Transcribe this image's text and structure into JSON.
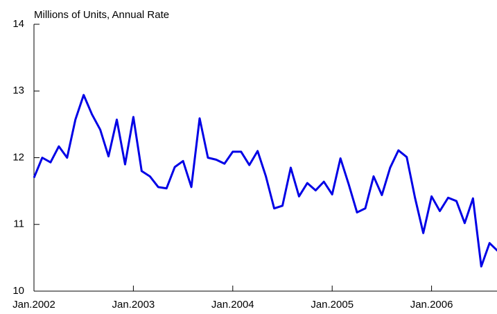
{
  "chart_data": {
    "type": "line",
    "subtitle": "Millions of Units, Annual Rate",
    "categories": [
      "Jan.2002",
      null,
      null,
      null,
      null,
      null,
      null,
      null,
      null,
      null,
      null,
      null,
      "Jan.2003",
      null,
      null,
      null,
      null,
      null,
      null,
      null,
      null,
      null,
      null,
      null,
      "Jan.2004",
      null,
      null,
      null,
      null,
      null,
      null,
      null,
      null,
      null,
      null,
      null,
      "Jan.2005",
      null,
      null,
      null,
      null,
      null,
      null,
      null,
      null,
      null,
      null,
      null,
      "Jan.2006",
      null,
      null,
      null,
      null,
      null,
      null,
      null,
      null
    ],
    "series": [
      {
        "color": "#0000e6",
        "values": [
          11.7,
          12.0,
          11.93,
          12.17,
          12.0,
          12.57,
          12.94,
          12.65,
          12.42,
          12.02,
          12.57,
          11.9,
          12.61,
          11.8,
          11.72,
          11.56,
          11.54,
          11.86,
          11.95,
          11.56,
          12.59,
          12.0,
          11.97,
          11.91,
          12.09,
          12.09,
          11.89,
          12.1,
          11.72,
          11.24,
          11.28,
          11.85,
          11.42,
          11.62,
          11.51,
          11.64,
          11.45,
          11.99,
          11.6,
          11.18,
          11.24,
          11.72,
          11.44,
          11.85,
          12.11,
          12.01,
          11.4,
          10.87,
          11.42,
          11.2,
          11.4,
          11.35,
          11.02,
          11.39,
          10.37,
          10.72,
          10.6
        ]
      }
    ],
    "ylim": [
      10,
      14
    ],
    "yticks": [
      10,
      11,
      12,
      13,
      14
    ]
  }
}
